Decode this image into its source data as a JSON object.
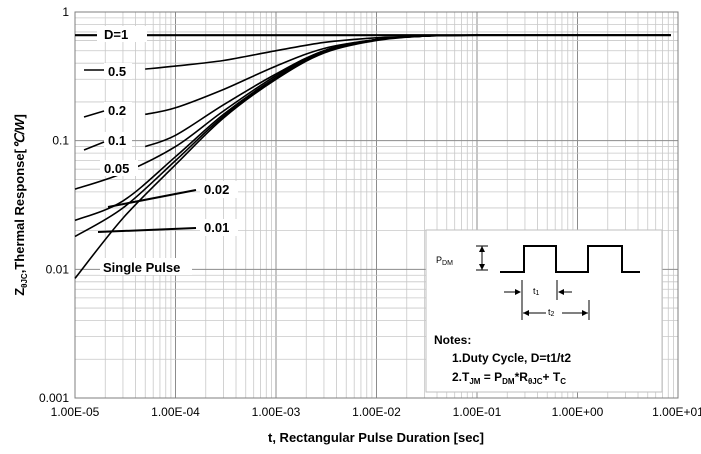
{
  "chart_data": {
    "type": "line",
    "title": "",
    "xlabel": "t, Rectangular Pulse Duration [sec]",
    "ylabel": {
      "prefix": "Z",
      "sub": "θJC",
      "rest": ",Thermal Response[",
      "unit": "℃/W",
      "close": "]"
    },
    "x_scale": "log",
    "y_scale": "log",
    "xlim": [
      1e-05,
      10
    ],
    "ylim": [
      0.001,
      1
    ],
    "grid": true,
    "x_ticks": [
      {
        "value": 1e-05,
        "label": "1.00E-05"
      },
      {
        "value": 0.0001,
        "label": "1.00E-04"
      },
      {
        "value": 0.001,
        "label": "1.00E-03"
      },
      {
        "value": 0.01,
        "label": "1.00E-02"
      },
      {
        "value": 0.1,
        "label": "1.00E-01"
      },
      {
        "value": 1,
        "label": "1.00E+00"
      },
      {
        "value": 10,
        "label": "1.00E+01"
      }
    ],
    "y_ticks": [
      {
        "value": 1,
        "label": "1"
      },
      {
        "value": 0.1,
        "label": "0.1"
      },
      {
        "value": 0.01,
        "label": "0.01"
      },
      {
        "value": 0.001,
        "label": "0.001"
      }
    ],
    "series": [
      {
        "name": "D=1",
        "label": "D=1",
        "x": [
          1e-05,
          8.5
        ],
        "y": [
          0.66,
          0.66
        ]
      },
      {
        "name": "0.5",
        "label": "0.5",
        "x": [
          5e-05,
          0.0001,
          0.0003,
          0.001,
          0.003,
          0.01,
          0.03,
          0.1,
          8.5
        ],
        "y": [
          0.36,
          0.38,
          0.42,
          0.5,
          0.58,
          0.63,
          0.65,
          0.66,
          0.66
        ]
      },
      {
        "name": "0.2",
        "label": "0.2",
        "x": [
          5e-05,
          0.0001,
          0.0003,
          0.001,
          0.003,
          0.01,
          0.03,
          0.1,
          8.5
        ],
        "y": [
          0.16,
          0.18,
          0.25,
          0.38,
          0.52,
          0.61,
          0.65,
          0.66,
          0.66
        ]
      },
      {
        "name": "0.1",
        "label": "0.1",
        "x": [
          5e-05,
          0.0001,
          0.0003,
          0.001,
          0.003,
          0.01,
          0.03,
          0.1,
          8.5
        ],
        "y": [
          0.09,
          0.11,
          0.19,
          0.33,
          0.5,
          0.61,
          0.65,
          0.66,
          0.66
        ]
      },
      {
        "name": "0.05",
        "label": "0.05",
        "x": [
          1e-05,
          3e-05,
          0.0001,
          0.0003,
          0.001,
          0.003,
          0.01,
          0.03,
          0.1,
          8.5
        ],
        "y": [
          0.042,
          0.056,
          0.09,
          0.17,
          0.32,
          0.5,
          0.61,
          0.65,
          0.66,
          0.66
        ]
      },
      {
        "name": "0.02",
        "label": "0.02",
        "x": [
          1e-05,
          3e-05,
          0.0001,
          0.0003,
          0.001,
          0.003,
          0.01,
          0.03,
          0.1,
          8.5
        ],
        "y": [
          0.024,
          0.034,
          0.075,
          0.16,
          0.31,
          0.49,
          0.61,
          0.65,
          0.66,
          0.66
        ]
      },
      {
        "name": "0.01",
        "label": "0.01",
        "x": [
          1e-05,
          3e-05,
          0.0001,
          0.0003,
          0.001,
          0.003,
          0.01,
          0.03,
          0.1,
          8.5
        ],
        "y": [
          0.018,
          0.03,
          0.07,
          0.155,
          0.305,
          0.49,
          0.61,
          0.65,
          0.66,
          0.66
        ]
      },
      {
        "name": "Single Pulse",
        "label": "Single Pulse",
        "x": [
          1e-05,
          3e-05,
          0.0001,
          0.0003,
          0.001,
          0.003,
          0.01,
          0.03,
          0.1,
          8.5
        ],
        "y": [
          0.0085,
          0.025,
          0.065,
          0.15,
          0.3,
          0.48,
          0.6,
          0.65,
          0.66,
          0.66
        ]
      }
    ],
    "annotations": {
      "pdm": {
        "main": "P",
        "sub": "DM"
      },
      "t1": {
        "main": "t",
        "sub": "1"
      },
      "t2": {
        "main": "t",
        "sub": "2"
      },
      "notes_title": "Notes:",
      "note1": "1.Duty  Cycle, D=t1/t2",
      "note2": {
        "p1": "2.T",
        "s1": "JM",
        "p2": " = P",
        "s2": "DM",
        "p3": "*R",
        "s3": "θJC",
        "p4": "+ T",
        "s4": "C"
      }
    }
  }
}
